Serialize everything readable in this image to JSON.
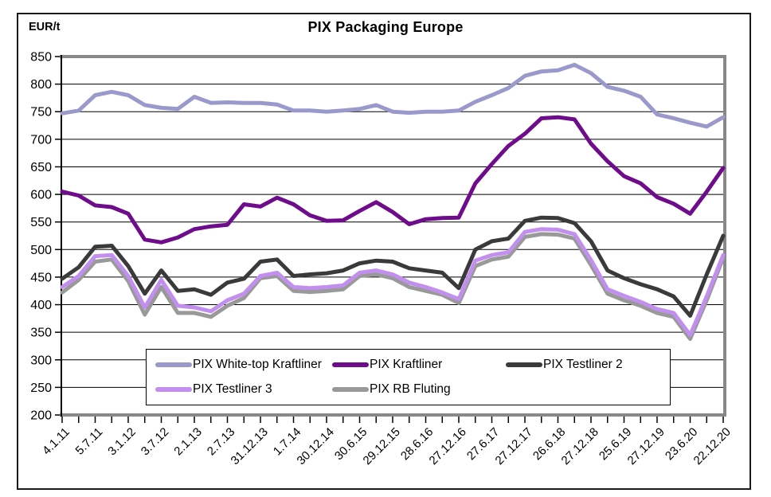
{
  "chart": {
    "title": "PIX Packaging Europe",
    "y_axis_unit": "EUR/t",
    "y_ticks": [
      850,
      800,
      750,
      700,
      650,
      600,
      550,
      500,
      450,
      400,
      350,
      300,
      250,
      200
    ],
    "x_tick_count": 41,
    "x_tick_note": "quarterly ticks, every second tick labeled",
    "legend_rows": [
      [
        0,
        1,
        2
      ],
      [
        3,
        4
      ]
    ]
  },
  "chart_data": {
    "type": "line",
    "title": "PIX Packaging Europe",
    "ylabel": "EUR/t",
    "ylim": [
      200,
      850
    ],
    "grid": "horizontal",
    "legend_position": "inside-bottom-center",
    "x_labels": [
      "4.1.11",
      "5.7.11",
      "3.1.12",
      "3.7.12",
      "2.1.13",
      "2.7.13",
      "31.12.13",
      "1.7.14",
      "30.12.14",
      "30.6.15",
      "29.12.15",
      "28.6.16",
      "27.12.16",
      "27.6.17",
      "27.12.17",
      "26.6.18",
      "27.12.18",
      "25.6.19",
      "27.12.19",
      "23.6.20",
      "22.12.20"
    ],
    "x_sampling": "values sampled quarterly; even indices align with x_labels",
    "colors": {
      "axis": "#000000",
      "gridline": "#000000",
      "plot_border_gray": "#888888",
      "text": "#000000"
    },
    "series": [
      {
        "name": "PIX White-top Kraftliner",
        "color": "#9999CC",
        "values": [
          747,
          752,
          780,
          786,
          780,
          762,
          757,
          755,
          777,
          766,
          767,
          766,
          766,
          763,
          752,
          752,
          750,
          752,
          755,
          762,
          750,
          748,
          750,
          750,
          752,
          768,
          780,
          793,
          815,
          823,
          825,
          835,
          820,
          795,
          788,
          777,
          745,
          738,
          730,
          723,
          740
        ]
      },
      {
        "name": "PIX Kraftliner",
        "color": "#6E0C8B",
        "values": [
          605,
          598,
          580,
          577,
          565,
          518,
          513,
          522,
          537,
          542,
          545,
          582,
          578,
          594,
          582,
          562,
          552,
          553,
          570,
          586,
          568,
          546,
          555,
          557,
          558,
          620,
          655,
          688,
          710,
          738,
          740,
          736,
          692,
          660,
          633,
          620,
          595,
          583,
          565,
          605,
          648
        ]
      },
      {
        "name": "PIX Testliner 2",
        "color": "#3A3A3A",
        "values": [
          447,
          468,
          505,
          507,
          470,
          420,
          462,
          425,
          428,
          418,
          440,
          447,
          478,
          482,
          452,
          455,
          457,
          462,
          475,
          480,
          478,
          466,
          462,
          458,
          430,
          500,
          515,
          520,
          552,
          558,
          557,
          548,
          515,
          462,
          448,
          437,
          428,
          415,
          380,
          455,
          525
        ]
      },
      {
        "name": "PIX Testliner 3",
        "color": "#C28FEF",
        "values": [
          432,
          452,
          488,
          490,
          452,
          395,
          445,
          398,
          395,
          388,
          408,
          420,
          452,
          458,
          432,
          430,
          432,
          435,
          458,
          462,
          455,
          440,
          432,
          422,
          410,
          480,
          490,
          495,
          532,
          537,
          536,
          528,
          481,
          428,
          416,
          405,
          392,
          385,
          345,
          415,
          490
        ]
      },
      {
        "name": "PIX RB Fluting",
        "color": "#999999",
        "values": [
          422,
          445,
          478,
          482,
          443,
          382,
          432,
          385,
          385,
          378,
          398,
          412,
          448,
          452,
          425,
          423,
          425,
          428,
          452,
          455,
          448,
          432,
          425,
          418,
          403,
          470,
          482,
          487,
          523,
          528,
          527,
          520,
          472,
          420,
          408,
          398,
          385,
          378,
          338,
          408,
          485
        ]
      }
    ]
  }
}
